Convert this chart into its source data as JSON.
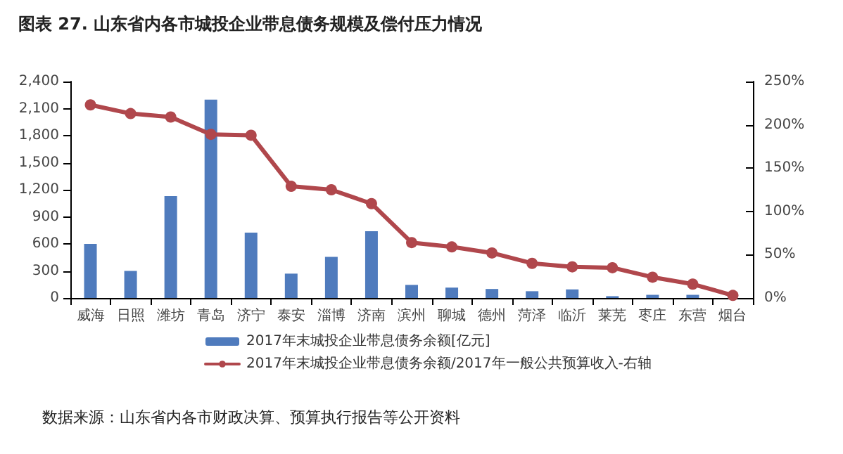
{
  "chart_data": {
    "type": "bar",
    "title": "图表 27. 山东省内各市城投企业带息债务规模及偿付压力情况",
    "annotations": [
      "数据来源：山东省内各市财政决算、预算执行报告等公开资料"
    ],
    "categories": [
      "威海",
      "日照",
      "潍坊",
      "青岛",
      "济宁",
      "泰安",
      "淄博",
      "济南",
      "滨州",
      "聊城",
      "德州",
      "菏泽",
      "临沂",
      "莱芜",
      "枣庄",
      "东营",
      "烟台"
    ],
    "series": [
      {
        "name": "2017年末城投企业带息债务余额[亿元]",
        "color": "#4f7bbd",
        "values": [
          600,
          300,
          1130,
          2200,
          725,
          270,
          455,
          740,
          145,
          115,
          100,
          75,
          95,
          20,
          35,
          35,
          null
        ]
      },
      {
        "name": "2017年末城投企业带息债务余额/2017年一般公共预算收入-右轴",
        "type": "line",
        "axis": "y2",
        "color": "#b0474c",
        "marker": "circle",
        "values": [
          223,
          213,
          209,
          189,
          188,
          129,
          125,
          109,
          64,
          59,
          52,
          40,
          36,
          35,
          24,
          16,
          3
        ]
      }
    ],
    "ylim": [
      0,
      2400
    ],
    "yticks": [
      0,
      300,
      600,
      900,
      {
        "value": 1200,
        "label": "1,200"
      },
      {
        "value": 1500,
        "label": "1,500"
      },
      {
        "value": 1800,
        "label": "1,800"
      },
      {
        "value": 2100,
        "label": "2,100"
      },
      {
        "value": 2400,
        "label": "2,400"
      }
    ],
    "y2lim": [
      0,
      250
    ],
    "y2ticks": [
      {
        "value": 0,
        "label": "0%"
      },
      {
        "value": 50,
        "label": "50%"
      },
      {
        "value": 100,
        "label": "100%"
      },
      {
        "value": 150,
        "label": "150%"
      },
      {
        "value": 200,
        "label": "200%"
      },
      {
        "value": 250,
        "label": "250%"
      }
    ],
    "grid": false,
    "legend": "bottom"
  }
}
